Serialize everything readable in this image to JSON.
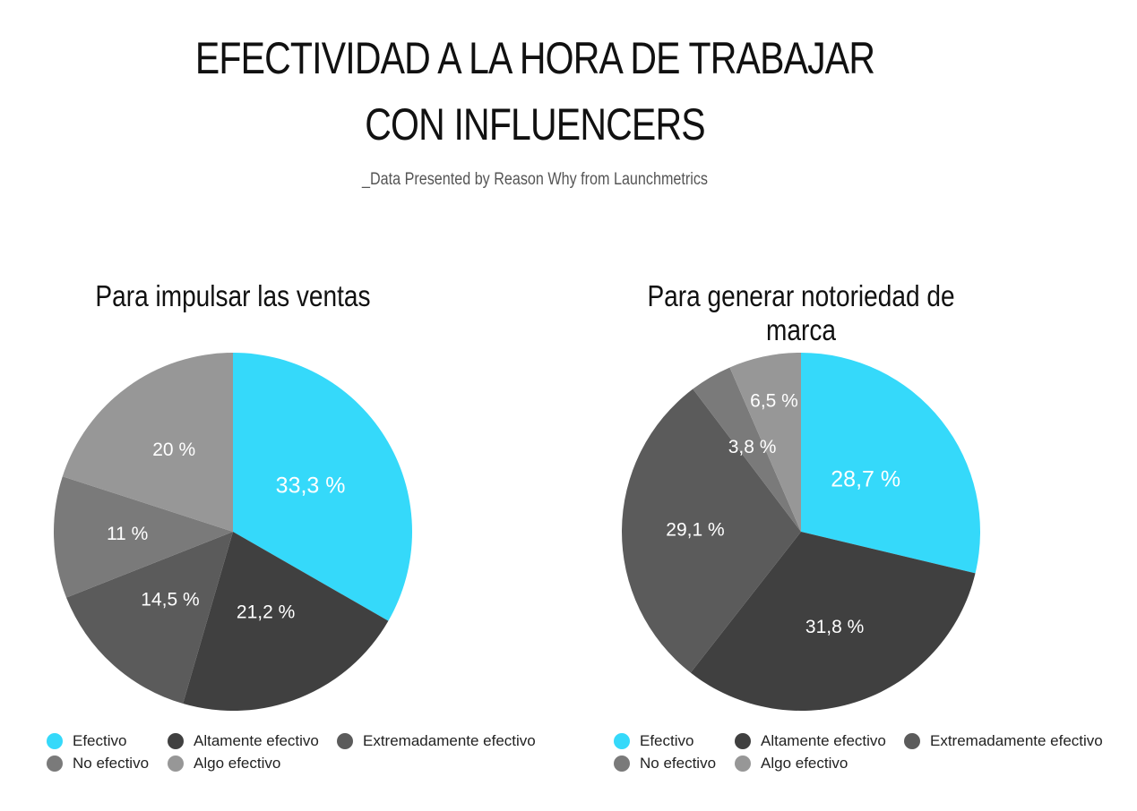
{
  "header": {
    "title_line1": "EFECTIVIDAD A LA HORA DE TRABAJAR",
    "title_line2": "CON INFLUENCERS",
    "subtitle": "_Data Presented by Reason Why from Launchmetrics"
  },
  "colors": {
    "efectivo": "#35d9fa",
    "altamente": "#404040",
    "extremadamente": "#5b5b5b",
    "no_efectivo": "#7a7a7a",
    "algo_efectivo": "#979797"
  },
  "legend": [
    {
      "key": "efectivo",
      "label": "Efectivo"
    },
    {
      "key": "altamente",
      "label": "Altamente efectivo"
    },
    {
      "key": "extremadamente",
      "label": "Extremadamente efectivo"
    },
    {
      "key": "no_efectivo",
      "label": "No efectivo"
    },
    {
      "key": "algo_efectivo",
      "label": "Algo efectivo"
    }
  ],
  "chart_data": [
    {
      "type": "pie",
      "title": "Para impulsar las ventas",
      "slices": [
        {
          "key": "efectivo",
          "label": "Efectivo",
          "value": 33.3,
          "text": "33,3 %"
        },
        {
          "key": "altamente",
          "label": "Altamente efectivo",
          "value": 21.2,
          "text": "21,2 %"
        },
        {
          "key": "extremadamente",
          "label": "Extremadamente efectivo",
          "value": 14.5,
          "text": "14,5 %"
        },
        {
          "key": "no_efectivo",
          "label": "No efectivo",
          "value": 11,
          "text": "11 %"
        },
        {
          "key": "algo_efectivo",
          "label": "Algo efectivo",
          "value": 20,
          "text": "20 %"
        }
      ],
      "legend_position": "bottom"
    },
    {
      "type": "pie",
      "title": "Para generar notoriedad de marca",
      "slices": [
        {
          "key": "efectivo",
          "label": "Efectivo",
          "value": 28.7,
          "text": "28,7 %"
        },
        {
          "key": "altamente",
          "label": "Altamente efectivo",
          "value": 31.8,
          "text": "31,8 %"
        },
        {
          "key": "extremadamente",
          "label": "Extremadamente efectivo",
          "value": 29.1,
          "text": "29,1 %"
        },
        {
          "key": "no_efectivo",
          "label": "No efectivo",
          "value": 3.8,
          "text": "3,8 %"
        },
        {
          "key": "algo_efectivo",
          "label": "Algo efectivo",
          "value": 6.5,
          "text": "6,5 %"
        }
      ],
      "legend_position": "bottom"
    }
  ]
}
